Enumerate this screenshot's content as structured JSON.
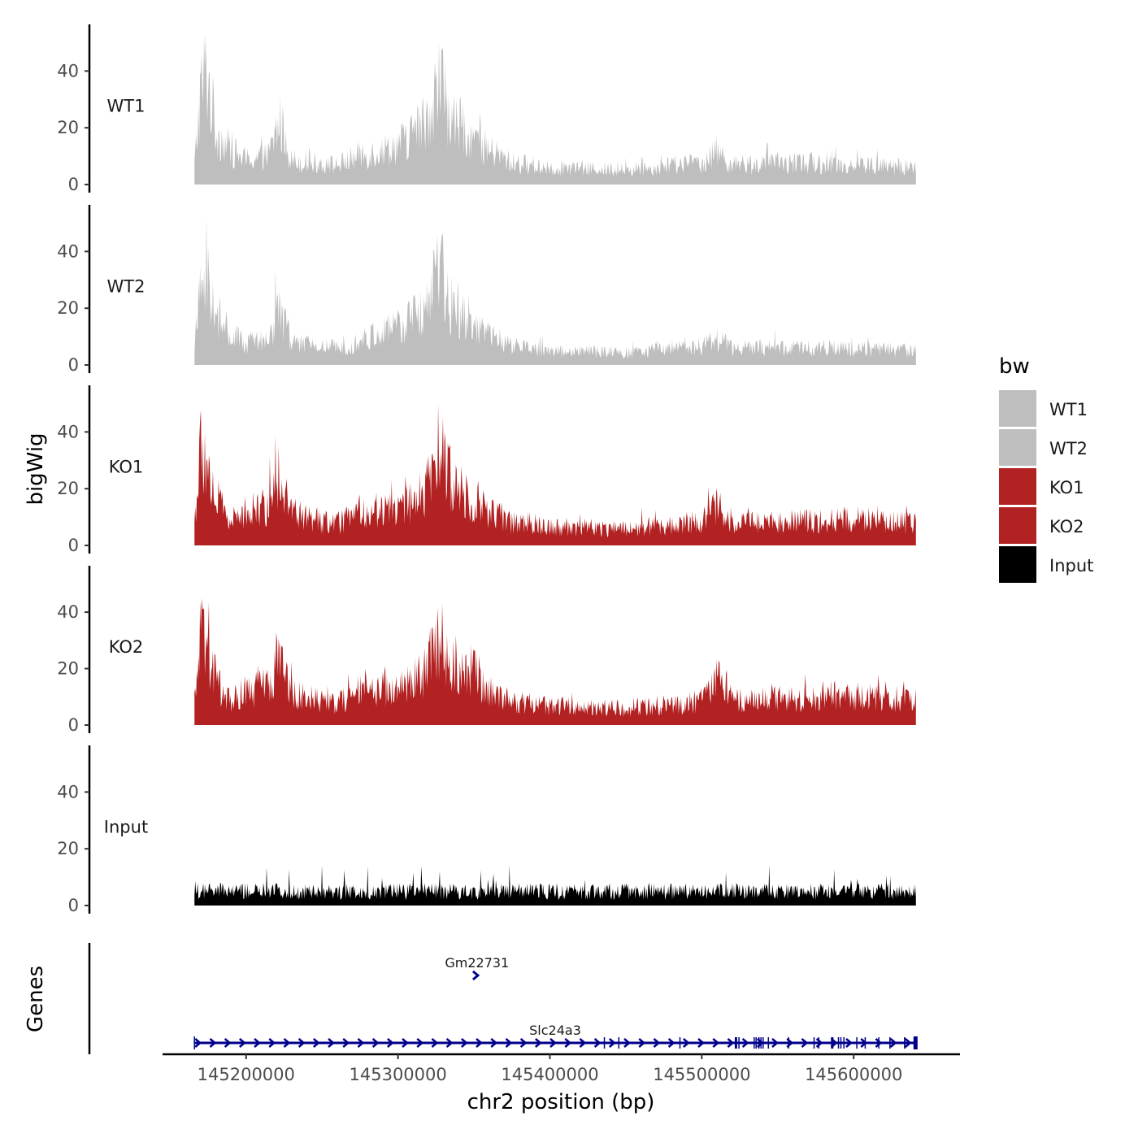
{
  "chart_data": {
    "type": "area",
    "title": "",
    "xlabel": "chr2 position (bp)",
    "ylabel": "bigWig",
    "genes_panel_label": "Genes",
    "xlim": [
      145145000,
      145670000
    ],
    "data_range": [
      145166000,
      145641000
    ],
    "x_ticks": [
      145200000,
      145300000,
      145400000,
      145500000,
      145600000
    ],
    "x_tick_labels": [
      "145200000",
      "145300000",
      "145400000",
      "145500000",
      "145600000"
    ],
    "ylim": [
      0,
      55
    ],
    "y_ticks": [
      0,
      20,
      40
    ],
    "y_tick_labels": [
      "0",
      "20",
      "40"
    ],
    "grid": false,
    "legend": {
      "title": "bw",
      "position": "right",
      "entries": [
        {
          "label": "WT1",
          "color": "#bebebe"
        },
        {
          "label": "WT2",
          "color": "#bebebe"
        },
        {
          "label": "KO1",
          "color": "#b22222"
        },
        {
          "label": "KO2",
          "color": "#b22222"
        },
        {
          "label": "Input",
          "color": "#000000"
        }
      ]
    },
    "series": [
      {
        "name": "WT1",
        "color": "#bebebe",
        "approx_profile_x": [
          145166000,
          145170000,
          145174000,
          145180000,
          145190000,
          145200000,
          145215000,
          145222000,
          145230000,
          145245000,
          145260000,
          145275000,
          145290000,
          145305000,
          145318000,
          145328000,
          145335000,
          145345000,
          145360000,
          145375000,
          145400000,
          145450000,
          145500000,
          145510000,
          145520000,
          145560000,
          145600000,
          145641000
        ],
        "approx_profile_y": [
          8,
          38,
          48,
          22,
          14,
          10,
          12,
          26,
          10,
          9,
          8,
          12,
          14,
          18,
          26,
          44,
          26,
          22,
          14,
          9,
          7,
          6,
          9,
          14,
          8,
          9,
          8,
          7
        ]
      },
      {
        "name": "WT2",
        "color": "#bebebe",
        "approx_profile_x": [
          145166000,
          145170000,
          145174000,
          145180000,
          145190000,
          145200000,
          145215000,
          145222000,
          145230000,
          145245000,
          145260000,
          145275000,
          145290000,
          145305000,
          145318000,
          145328000,
          145335000,
          145345000,
          145360000,
          145375000,
          145400000,
          145450000,
          145500000,
          145510000,
          145520000,
          145560000,
          145600000,
          145641000
        ],
        "approx_profile_y": [
          7,
          32,
          40,
          18,
          12,
          9,
          10,
          24,
          9,
          8,
          7,
          10,
          13,
          17,
          24,
          40,
          22,
          20,
          12,
          8,
          6,
          5,
          8,
          11,
          7,
          7,
          7,
          6
        ]
      },
      {
        "name": "KO1",
        "color": "#b22222",
        "approx_profile_x": [
          145166000,
          145170000,
          145174000,
          145180000,
          145190000,
          145200000,
          145215000,
          145222000,
          145230000,
          145245000,
          145260000,
          145275000,
          145290000,
          145305000,
          145318000,
          145328000,
          145335000,
          145345000,
          145360000,
          145375000,
          145400000,
          145450000,
          145500000,
          145510000,
          145520000,
          145560000,
          145600000,
          145641000
        ],
        "approx_profile_y": [
          10,
          38,
          34,
          20,
          10,
          14,
          16,
          32,
          14,
          10,
          9,
          14,
          15,
          16,
          22,
          42,
          26,
          22,
          14,
          10,
          8,
          7,
          10,
          16,
          10,
          10,
          11,
          9
        ]
      },
      {
        "name": "KO2",
        "color": "#b22222",
        "approx_profile_x": [
          145166000,
          145170000,
          145174000,
          145180000,
          145190000,
          145200000,
          145215000,
          145222000,
          145230000,
          145245000,
          145260000,
          145275000,
          145290000,
          145305000,
          145318000,
          145328000,
          145335000,
          145345000,
          145360000,
          145375000,
          145400000,
          145450000,
          145500000,
          145510000,
          145520000,
          145560000,
          145600000,
          145641000
        ],
        "approx_profile_y": [
          10,
          36,
          30,
          18,
          10,
          14,
          16,
          28,
          14,
          11,
          9,
          14,
          15,
          16,
          22,
          38,
          24,
          26,
          14,
          10,
          8,
          7,
          10,
          20,
          10,
          11,
          12,
          10
        ]
      },
      {
        "name": "Input",
        "color": "#000000",
        "approx_profile_x": [
          145166000,
          145641000
        ],
        "approx_profile_y": [
          5,
          5
        ]
      }
    ],
    "genes": [
      {
        "name": "Gm22731",
        "start": 145351000,
        "end": 145353000,
        "strand": "+",
        "row": 1
      },
      {
        "name": "Slc24a3",
        "start": 145166000,
        "end": 145641000,
        "strand": "+",
        "row": 2
      }
    ]
  }
}
